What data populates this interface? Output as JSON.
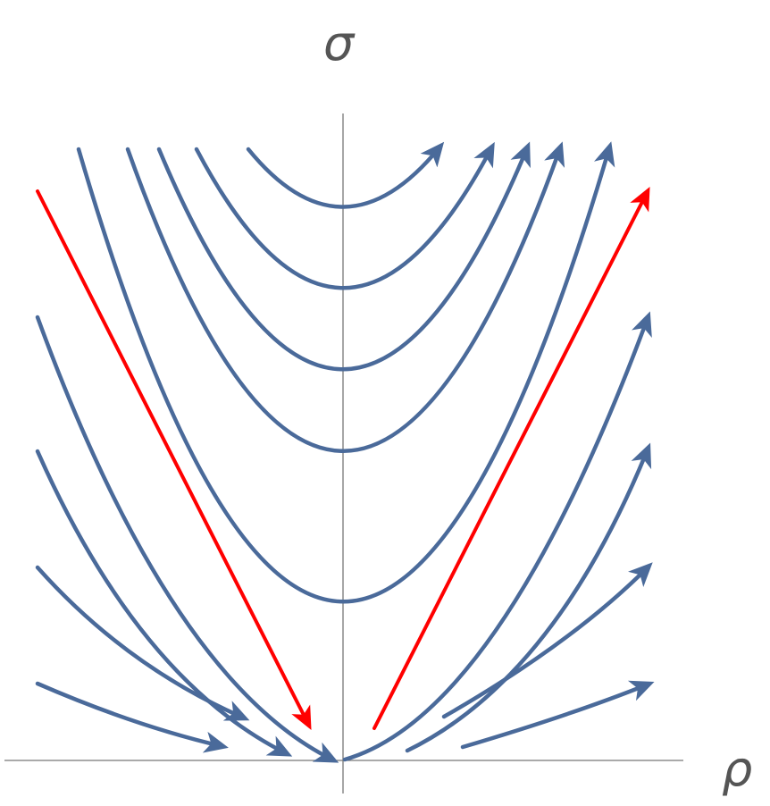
{
  "figure": {
    "x_axis_label": "ρ",
    "y_axis_label": "σ",
    "curve_color": "#4a6a9a",
    "separatrix_color": "#ff0000",
    "axis_color": "#777777",
    "grid": false
  }
}
